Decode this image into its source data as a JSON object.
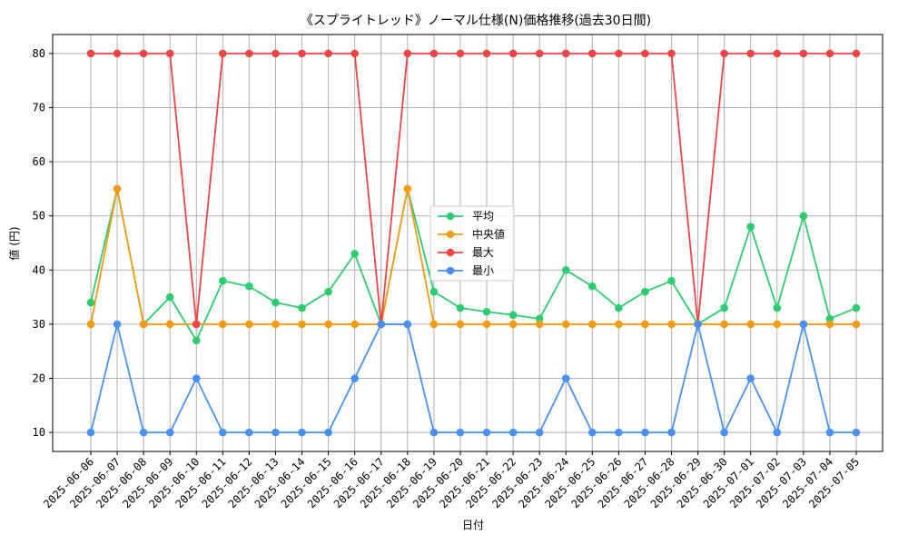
{
  "chart_data": {
    "type": "line",
    "title": "《スプライトレッド》ノーマル仕様(N)価格推移(過去30日間)",
    "xlabel": "日付",
    "ylabel": "値 (円)",
    "ylim": [
      6.5,
      83.5
    ],
    "yticks": [
      10,
      20,
      30,
      40,
      50,
      60,
      70,
      80
    ],
    "grid": true,
    "legend_position": "center",
    "categories": [
      "2025-06-06",
      "2025-06-07",
      "2025-06-08",
      "2025-06-09",
      "2025-06-10",
      "2025-06-11",
      "2025-06-12",
      "2025-06-13",
      "2025-06-14",
      "2025-06-15",
      "2025-06-16",
      "2025-06-17",
      "2025-06-18",
      "2025-06-19",
      "2025-06-20",
      "2025-06-21",
      "2025-06-22",
      "2025-06-23",
      "2025-06-24",
      "2025-06-25",
      "2025-06-26",
      "2025-06-27",
      "2025-06-28",
      "2025-06-29",
      "2025-06-30",
      "2025-07-01",
      "2025-07-02",
      "2025-07-03",
      "2025-07-04",
      "2025-07-05"
    ],
    "series": [
      {
        "name": "平均",
        "color": "#2ecc71",
        "values": [
          34,
          55,
          30,
          35,
          27,
          38,
          37,
          34,
          33,
          36,
          43,
          30,
          55,
          36,
          33,
          32.3,
          31.7,
          31,
          40,
          37,
          33,
          36,
          38,
          30,
          33,
          48,
          33,
          50,
          31,
          33
        ]
      },
      {
        "name": "中央値",
        "color": "#f39c12",
        "values": [
          30,
          55,
          30,
          30,
          30,
          30,
          30,
          30,
          30,
          30,
          30,
          30,
          55,
          30,
          30,
          30,
          30,
          30,
          30,
          30,
          30,
          30,
          30,
          30,
          30,
          30,
          30,
          30,
          30,
          30
        ]
      },
      {
        "name": "最大",
        "color": "#ef4444",
        "values": [
          80,
          80,
          80,
          80,
          30,
          80,
          80,
          80,
          80,
          80,
          80,
          30,
          80,
          80,
          80,
          80,
          80,
          80,
          80,
          80,
          80,
          80,
          80,
          30,
          80,
          80,
          80,
          80,
          80,
          80
        ]
      },
      {
        "name": "最小",
        "color": "#4a90f0",
        "values": [
          10,
          30,
          10,
          10,
          20,
          10,
          10,
          10,
          10,
          10,
          20,
          30,
          30,
          10,
          10,
          10,
          10,
          10,
          20,
          10,
          10,
          10,
          10,
          30,
          10,
          20,
          10,
          30,
          10,
          10
        ]
      }
    ]
  }
}
